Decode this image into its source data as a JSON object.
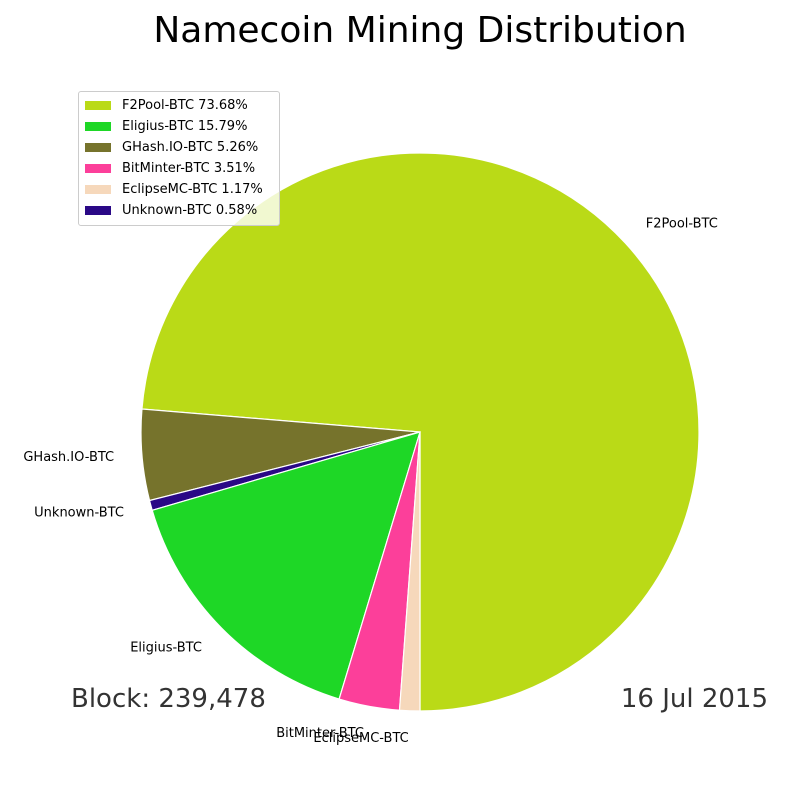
{
  "chart_data": {
    "type": "pie",
    "title": "Namecoin Mining Distribution",
    "slices": [
      {
        "label": "F2Pool-BTC",
        "value": 73.68,
        "legend": "F2Pool-BTC 73.68%",
        "color": "#bada17"
      },
      {
        "label": "GHash.IO-BTC",
        "value": 5.26,
        "legend": "GHash.IO-BTC 5.26%",
        "color": "#76732c"
      },
      {
        "label": "Unknown-BTC",
        "value": 0.58,
        "legend": "Unknown-BTC 0.58%",
        "color": "#2a0886"
      },
      {
        "label": "Eligius-BTC",
        "value": 15.79,
        "legend": "Eligius-BTC 15.79%",
        "color": "#1ed726"
      },
      {
        "label": "BitMinter-BTC",
        "value": 3.51,
        "legend": "BitMinter-BTC 3.51%",
        "color": "#fc3f9a"
      },
      {
        "label": "EclipseMC-BTC",
        "value": 1.17,
        "legend": "EclipseMC-BTC 1.17%",
        "color": "#f6d8bb"
      }
    ],
    "legend_order": [
      0,
      3,
      1,
      4,
      5,
      2
    ],
    "legend_placement": "upper-left",
    "start_angle_deg": -90,
    "direction": "counterclockwise"
  },
  "footer": {
    "block": "Block: 239,478",
    "date": "16 Jul 2015"
  }
}
